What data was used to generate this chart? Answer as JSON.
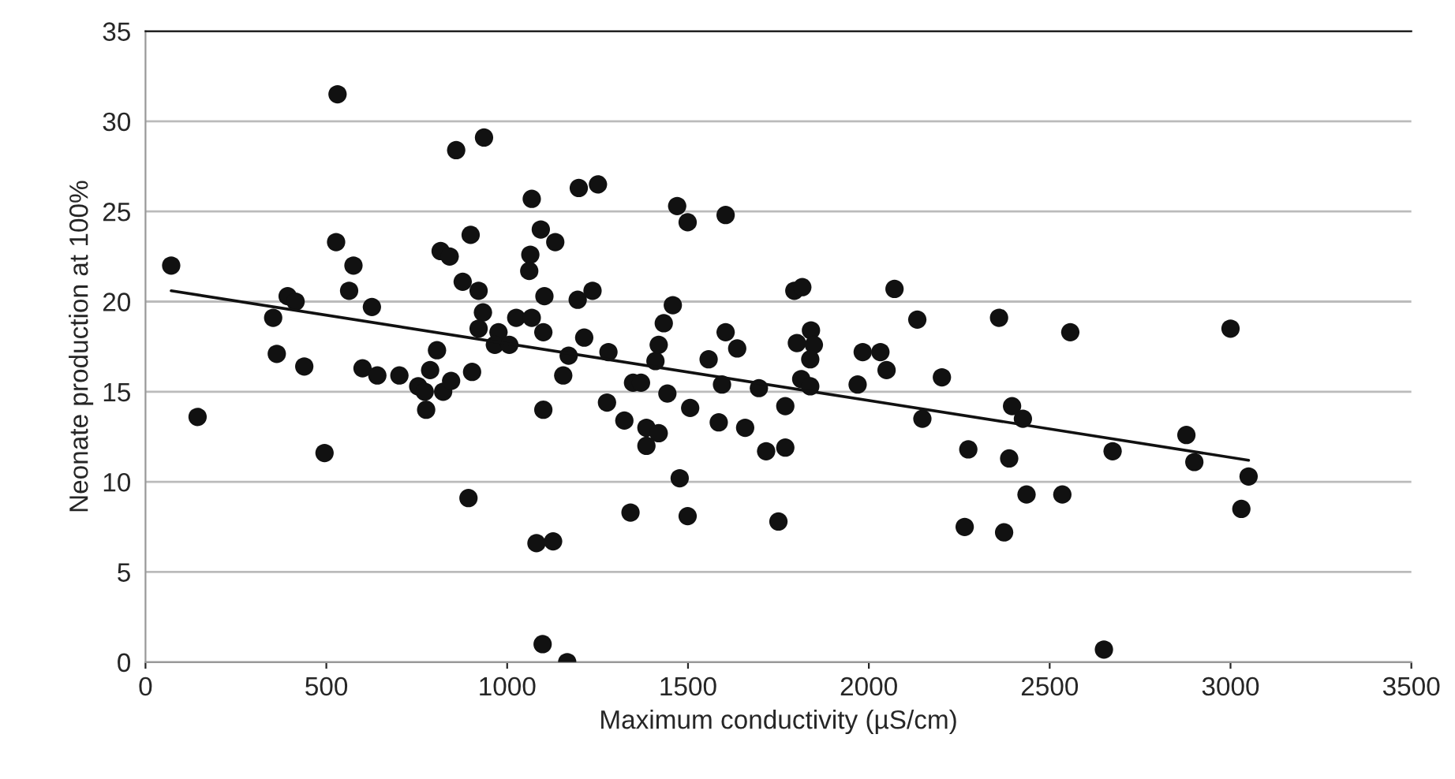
{
  "chart_data": {
    "type": "scatter",
    "xlabel": "Maximum conductivity (µS/cm)",
    "ylabel": "Neonate production at 100%",
    "xlim": [
      0,
      3500
    ],
    "xticks": [
      0,
      500,
      1000,
      1500,
      2000,
      2500,
      3000,
      3500
    ],
    "ylim": [
      0,
      35
    ],
    "yticks": [
      0,
      5,
      10,
      15,
      20,
      25,
      30,
      35
    ],
    "grid": "y",
    "marker": "circle",
    "series": [
      {
        "color": "#111111",
        "x": [
          71,
          144,
          531,
          527,
          575,
          563,
          626,
          393,
          415,
          353,
          363,
          439,
          495,
          600,
          641,
          702,
          754,
          772,
          776,
          787,
          806,
          823,
          845,
          816,
          841,
          859,
          936,
          899,
          877,
          921,
          933,
          921,
          903,
          893,
          976,
          966,
          1006,
          1025,
          1068,
          1068,
          1064,
          1061,
          1093,
          1133,
          1103,
          1100,
          1100,
          1170,
          1155,
          1213,
          1195,
          1236,
          1198,
          1251,
          1280,
          1276,
          1324,
          1348,
          1370,
          1341,
          1385,
          1419,
          1385,
          1443,
          1410,
          1419,
          1433,
          1458,
          1470,
          1499,
          1477,
          1499,
          1506,
          1557,
          1604,
          1636,
          1594,
          1585,
          1604,
          1658,
          1696,
          1716,
          1769,
          1769,
          1750,
          1794,
          1816,
          1801,
          1840,
          1848,
          1838,
          1813,
          1838,
          1081,
          1127,
          1098,
          1166,
          1969,
          1983,
          2032,
          2049,
          2071,
          2134,
          2148,
          2202,
          2275,
          2265,
          2360,
          2396,
          2426,
          2388,
          2436,
          2374,
          2535,
          2557,
          2674,
          2650,
          2878,
          2900,
          3000,
          3030,
          3050
        ],
        "values": [
          22.0,
          13.6,
          31.5,
          23.3,
          22.0,
          20.6,
          19.7,
          20.3,
          20.0,
          19.1,
          17.1,
          16.4,
          11.6,
          16.3,
          15.9,
          15.9,
          15.3,
          15.0,
          14.0,
          16.2,
          17.3,
          15.0,
          15.6,
          22.8,
          22.5,
          28.4,
          29.1,
          23.7,
          21.1,
          20.6,
          19.4,
          18.5,
          16.1,
          9.1,
          18.3,
          17.6,
          17.6,
          19.1,
          19.1,
          25.7,
          22.6,
          21.7,
          24.0,
          23.3,
          20.3,
          18.3,
          14.0,
          17.0,
          15.9,
          18.0,
          20.1,
          20.6,
          26.3,
          26.5,
          17.2,
          14.4,
          13.4,
          15.5,
          15.5,
          8.3,
          13.0,
          12.7,
          12.0,
          14.9,
          16.7,
          17.6,
          18.8,
          19.8,
          25.3,
          24.4,
          10.2,
          8.1,
          14.1,
          16.8,
          18.3,
          17.4,
          15.4,
          13.3,
          24.8,
          13.0,
          15.2,
          11.7,
          11.9,
          14.2,
          7.8,
          20.6,
          20.8,
          17.7,
          18.4,
          17.6,
          16.8,
          15.7,
          15.3,
          6.6,
          6.7,
          1.0,
          0,
          15.4,
          17.2,
          17.2,
          16.2,
          20.7,
          19.0,
          13.5,
          15.8,
          11.8,
          7.5,
          19.1,
          14.2,
          13.5,
          11.3,
          9.3,
          7.2,
          9.3,
          18.3,
          11.7,
          0.7,
          12.6,
          11.1,
          18.5,
          8.5,
          10.3
        ]
      },
      {
        "type": "line",
        "color": "#111111",
        "marker": "none",
        "line_style": "solid",
        "x": [
          71,
          3050
        ],
        "values": [
          20.6,
          11.2
        ]
      }
    ]
  }
}
